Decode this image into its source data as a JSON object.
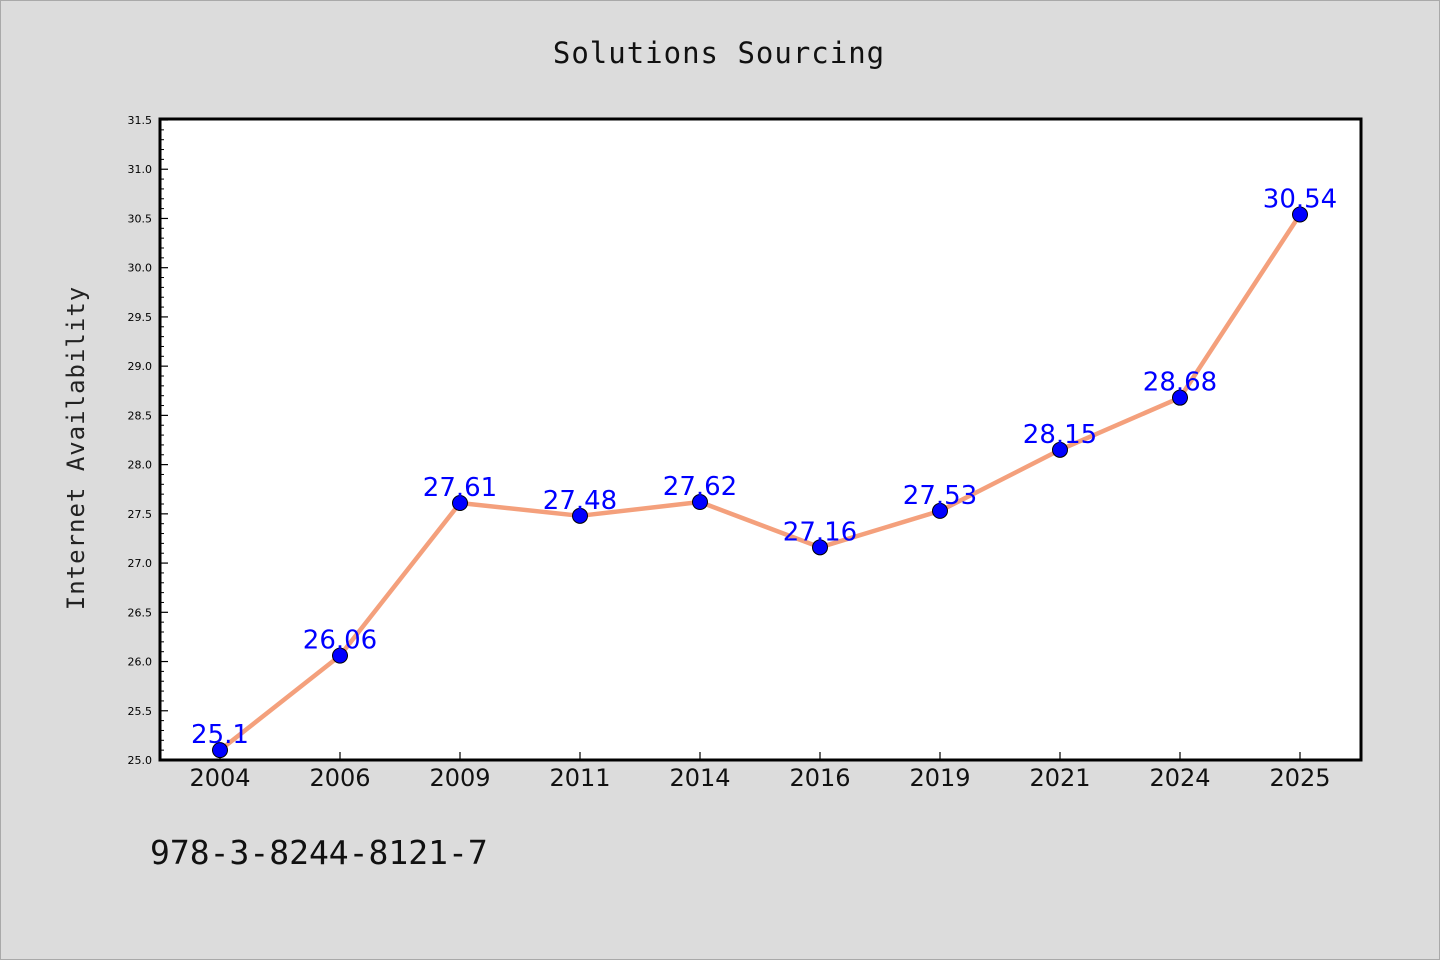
{
  "chart_data": {
    "type": "line",
    "title": "Solutions Sourcing",
    "xlabel": "",
    "ylabel": "Internet Availability",
    "categories": [
      "2004",
      "2006",
      "2009",
      "2011",
      "2014",
      "2016",
      "2019",
      "2021",
      "2024",
      "2025"
    ],
    "series": [
      {
        "values": [
          25.1,
          26.06,
          27.61,
          27.48,
          27.62,
          27.16,
          27.53,
          28.15,
          28.68,
          30.54
        ],
        "data_labels": [
          "25.1",
          "26.06",
          "27.61",
          "27.48",
          "27.62",
          "27.16",
          "27.53",
          "28.15",
          "28.68",
          "30.54"
        ],
        "line_color": "#f4a07c",
        "marker_color": "#0000ff"
      }
    ],
    "ylim": [
      25.0,
      31.5
    ],
    "yticks": [
      "25.0",
      "25.5",
      "26.0",
      "26.5",
      "27.0",
      "27.5",
      "28.0",
      "28.5",
      "29.0",
      "29.5",
      "30.0",
      "30.5",
      "31.0",
      "31.5"
    ],
    "grid": false,
    "legend": "none"
  },
  "footer": {
    "isbn": "978-3-8244-8121-7"
  },
  "colors": {
    "background": "#dcdcdc",
    "plot_area": "#ffffff",
    "line": "#f4a07c",
    "marker": "#0000ff",
    "data_label": "#0000ff"
  }
}
